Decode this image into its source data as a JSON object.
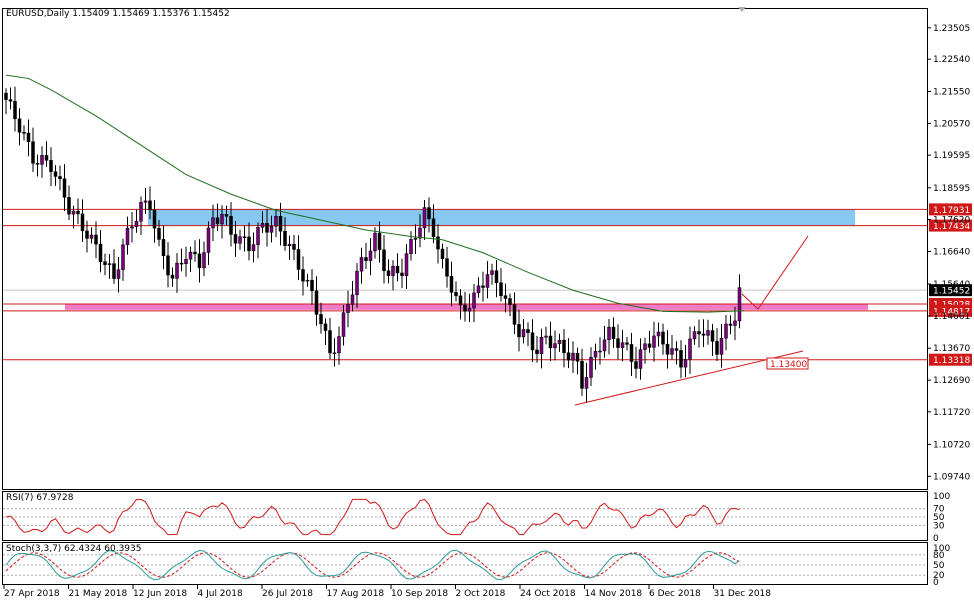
{
  "header": {
    "main": "EURUSD,Daily  1.15409 1.15469 1.15376 1.15452",
    "rsi": "RSI(7) 67.9728",
    "stoch": "Stoch(3,3,7) 62.4324 60.3935"
  },
  "colors": {
    "candle_up": "#7a0080",
    "candle_down": "#000000",
    "ma": "#1f6e1f",
    "zone_blue": "#87c8f0",
    "zone_pink": "#f07cc8",
    "level_line": "#d01818",
    "rsi_line": "#d01818",
    "stoch_main": "#2e9a9a",
    "stoch_signal": "#d01818",
    "last_price_bg": "#000000"
  },
  "chart_data": {
    "type": "candlestick",
    "symbol": "EURUSD",
    "timeframe": "Daily",
    "ylim": [
      1.0935,
      1.2405
    ],
    "yticks": [
      "1.23505",
      "1.22540",
      "1.21550",
      "1.20570",
      "1.19595",
      "1.18595",
      "1.17620",
      "1.16640",
      "1.15640",
      "1.14661",
      "1.13670",
      "1.12690",
      "1.11720",
      "1.10720",
      "1.09740"
    ],
    "xticks": [
      "27 Apr 2018",
      "21 May 2018",
      "12 Jun 2018",
      "4 Jul 2018",
      "26 Jul 2018",
      "17 Aug 2018",
      "10 Sep 2018",
      "2 Oct 2018",
      "24 Oct 2018",
      "14 Nov 2018",
      "6 Dec 2018",
      "31 Dec 2018"
    ],
    "close_path": [
      [
        0,
        1.213
      ],
      [
        3,
        1.205
      ],
      [
        6,
        1.195
      ],
      [
        10,
        1.193
      ],
      [
        14,
        1.18
      ],
      [
        18,
        1.172
      ],
      [
        22,
        1.163
      ],
      [
        24,
        1.158
      ],
      [
        26,
        1.168
      ],
      [
        28,
        1.175
      ],
      [
        30,
        1.18
      ],
      [
        32,
        1.181
      ],
      [
        34,
        1.168
      ],
      [
        37,
        1.158
      ],
      [
        40,
        1.166
      ],
      [
        43,
        1.163
      ],
      [
        46,
        1.176
      ],
      [
        48,
        1.178
      ],
      [
        50,
        1.172
      ],
      [
        54,
        1.168
      ],
      [
        57,
        1.174
      ],
      [
        60,
        1.175
      ],
      [
        63,
        1.168
      ],
      [
        66,
        1.159
      ],
      [
        68,
        1.153
      ],
      [
        70,
        1.145
      ],
      [
        72,
        1.135
      ],
      [
        74,
        1.14
      ],
      [
        76,
        1.151
      ],
      [
        79,
        1.163
      ],
      [
        82,
        1.17
      ],
      [
        85,
        1.159
      ],
      [
        88,
        1.161
      ],
      [
        91,
        1.172
      ],
      [
        93,
        1.178
      ],
      [
        95,
        1.173
      ],
      [
        97,
        1.162
      ],
      [
        99,
        1.156
      ],
      [
        101,
        1.148
      ],
      [
        104,
        1.152
      ],
      [
        107,
        1.16
      ],
      [
        110,
        1.155
      ],
      [
        112,
        1.148
      ],
      [
        114,
        1.142
      ],
      [
        116,
        1.14
      ],
      [
        118,
        1.136
      ],
      [
        120,
        1.14
      ],
      [
        122,
        1.138
      ],
      [
        124,
        1.136
      ],
      [
        126,
        1.134
      ],
      [
        127,
        1.131
      ],
      [
        128,
        1.126
      ],
      [
        130,
        1.132
      ],
      [
        132,
        1.138
      ],
      [
        134,
        1.141
      ],
      [
        136,
        1.139
      ],
      [
        138,
        1.136
      ],
      [
        140,
        1.132
      ],
      [
        142,
        1.137
      ],
      [
        144,
        1.141
      ],
      [
        146,
        1.138
      ],
      [
        148,
        1.136
      ],
      [
        150,
        1.132
      ],
      [
        152,
        1.138
      ],
      [
        154,
        1.143
      ],
      [
        156,
        1.14
      ],
      [
        158,
        1.137
      ],
      [
        160,
        1.142
      ],
      [
        162,
        1.147
      ],
      [
        163,
        1.154
      ]
    ],
    "ma_path": [
      [
        0,
        1.2205
      ],
      [
        5,
        1.2195
      ],
      [
        10,
        1.216
      ],
      [
        20,
        1.208
      ],
      [
        30,
        1.199
      ],
      [
        40,
        1.19
      ],
      [
        50,
        1.184
      ],
      [
        60,
        1.179
      ],
      [
        70,
        1.176
      ],
      [
        80,
        1.173
      ],
      [
        90,
        1.171
      ],
      [
        97,
        1.17
      ],
      [
        106,
        1.166
      ],
      [
        116,
        1.16
      ],
      [
        126,
        1.1545
      ],
      [
        136,
        1.1505
      ],
      [
        146,
        1.148
      ],
      [
        156,
        1.1478
      ],
      [
        164,
        1.1482
      ]
    ],
    "zones": [
      {
        "name": "resistance-zone",
        "from": 1.1743,
        "to": 1.1793,
        "color": "blue"
      },
      {
        "name": "support-zone",
        "from": 1.1488,
        "to": 1.1503,
        "color": "pink"
      }
    ],
    "levels": [
      "1.17931",
      "1.17434",
      "1.15028",
      "1.14817",
      "1.13318"
    ],
    "last_price": "1.15452",
    "trendline_label": "1.13400",
    "rsi": {
      "name": "RSI(7)",
      "value": "67.9728",
      "levels": [
        "100",
        "70",
        "50",
        "30",
        "0"
      ]
    },
    "stoch": {
      "name": "Stoch(3,3,7)",
      "main": "62.4324",
      "signal": "60.3935",
      "levels": [
        "100",
        "80",
        "50",
        "20",
        "0"
      ]
    }
  }
}
